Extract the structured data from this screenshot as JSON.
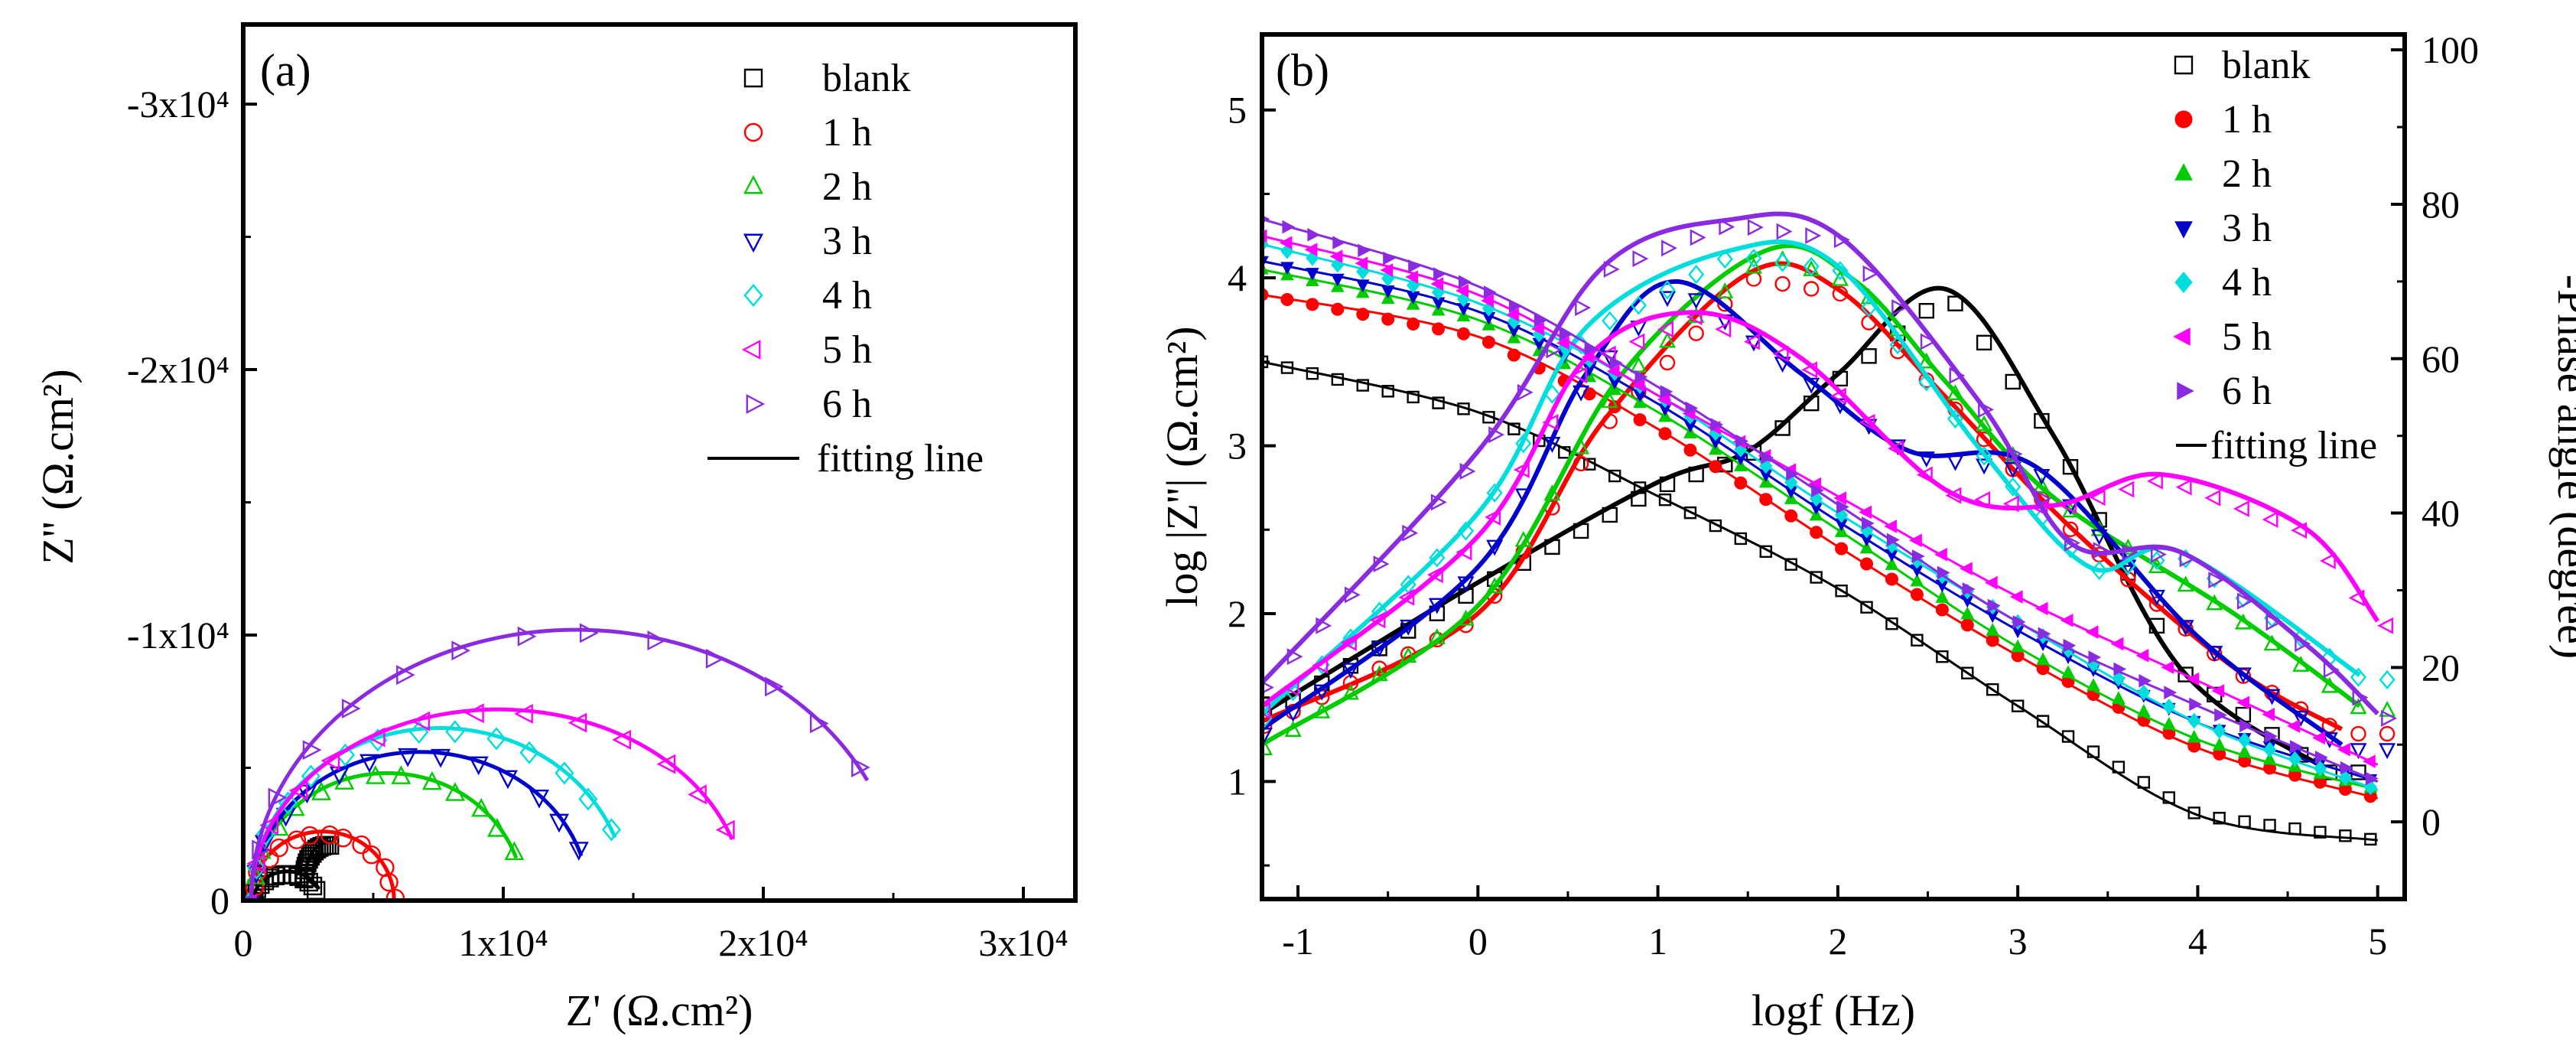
{
  "series_style": [
    {
      "name": "blank",
      "color": "#000000"
    },
    {
      "name": "1 h",
      "color": "#ff0000"
    },
    {
      "name": "2 h",
      "color": "#00cc00"
    },
    {
      "name": "3 h",
      "color": "#0000cc"
    },
    {
      "name": "4 h",
      "color": "#00dddd"
    },
    {
      "name": "5 h",
      "color": "#ff00ff"
    },
    {
      "name": "6 h",
      "color": "#8a2be2"
    }
  ],
  "chart_data": [
    {
      "type": "scatter",
      "panel_label": "(a)",
      "xlabel": "Z' (Ω.cm²)",
      "ylabel": "Z'' (Ω.cm²)",
      "xlim": [
        0,
        32000
      ],
      "ylim": [
        0,
        33000
      ],
      "x_ticks": [
        {
          "value": 0,
          "label": "0"
        },
        {
          "value": 10000,
          "label": "1x10⁴"
        },
        {
          "value": 20000,
          "label": "2x10⁴"
        },
        {
          "value": 30000,
          "label": "3x10⁴"
        }
      ],
      "y_ticks": [
        {
          "value": 0,
          "label": "0"
        },
        {
          "value": 10000,
          "label": "-1x10⁴"
        },
        {
          "value": 20000,
          "label": "-2x10⁴"
        },
        {
          "value": 30000,
          "label": "-3x10⁴"
        }
      ],
      "legend": {
        "position": "top-right",
        "entries": [
          {
            "label": "blank",
            "marker": "square",
            "color": "#000000"
          },
          {
            "label": "1 h",
            "marker": "circle",
            "color": "#ff0000"
          },
          {
            "label": "2 h",
            "marker": "triangle-up",
            "color": "#00cc00"
          },
          {
            "label": "3 h",
            "marker": "triangle-down",
            "color": "#0000cc"
          },
          {
            "label": "4 h",
            "marker": "diamond",
            "color": "#00dddd"
          },
          {
            "label": "5 h",
            "marker": "triangle-left",
            "color": "#ff00ff"
          },
          {
            "label": "6 h",
            "marker": "triangle-right",
            "color": "#8a2be2"
          },
          {
            "label": "fitting line",
            "marker": "line",
            "color": "#000000"
          }
        ]
      },
      "series": [
        {
          "name": "blank",
          "nyquist": [
            {
              "r1": 2200,
              "h1": 1100
            },
            {
              "r2": 1700,
              "h2": 2200
            }
          ]
        },
        {
          "name": "1 h",
          "nyquist": [
            {
              "r1": 5500,
              "h1": 2600
            }
          ],
          "tail": {
            "x": 7000,
            "y": 1700
          }
        },
        {
          "name": "2 h",
          "nyquist": [
            {
              "r1": 10500,
              "h1": 4800
            }
          ],
          "tail": {
            "x": 10500,
            "y": 2600
          }
        },
        {
          "name": "3 h",
          "nyquist": [
            {
              "r1": 13000,
              "h1": 5600
            }
          ],
          "tail": {
            "x": 13000,
            "y": 2100
          }
        },
        {
          "name": "4 h",
          "nyquist": [
            {
              "r1": 14500,
              "h1": 6500
            }
          ],
          "tail": {
            "x": 14300,
            "y": 4000
          }
        },
        {
          "name": "5 h",
          "nyquist": [
            {
              "r1": 19000,
              "h1": 7200
            }
          ],
          "tail": {
            "x": 18800,
            "y": 4700
          }
        },
        {
          "name": "6 h",
          "nyquist": [
            {
              "r1": 25000,
              "h1": 10200
            }
          ],
          "tail": {
            "x": 24000,
            "y": 5000
          }
        }
      ]
    },
    {
      "type": "line",
      "panel_label": "(b)",
      "xlabel": "logf (Hz)",
      "ylabel": "log |Z''| (Ω.cm²)",
      "ylabel_right": "-Phase angle (degree)",
      "xlim": [
        -1.2,
        5.15
      ],
      "ylim": [
        0.3,
        5.45
      ],
      "ylim_right": [
        -10,
        102
      ],
      "x_ticks": [
        -1,
        0,
        1,
        2,
        3,
        4,
        5
      ],
      "y_ticks": [
        1,
        2,
        3,
        4,
        5
      ],
      "y_ticks_right": [
        0,
        20,
        40,
        60,
        80,
        100
      ],
      "legend": {
        "position": "top-right",
        "entries": [
          {
            "label": "blank",
            "marker": "square",
            "color": "#000000"
          },
          {
            "label": "1 h",
            "marker": "circle-filled",
            "color": "#ff0000"
          },
          {
            "label": "2 h",
            "marker": "triangle-up-filled",
            "color": "#00cc00"
          },
          {
            "label": "3 h",
            "marker": "triangle-down-filled",
            "color": "#0000cc"
          },
          {
            "label": "4 h",
            "marker": "diamond-filled",
            "color": "#00dddd"
          },
          {
            "label": "5 h",
            "marker": "triangle-left-filled",
            "color": "#ff00ff"
          },
          {
            "label": "6 h",
            "marker": "triangle-right-filled",
            "color": "#8a2be2"
          },
          {
            "label": "fitting line",
            "marker": "line",
            "color": "#000000"
          }
        ]
      },
      "series": [
        {
          "name": "blank",
          "logZ": [
            [
              -1.2,
              3.5
            ],
            [
              0,
              3.2
            ],
            [
              1,
              2.7
            ],
            [
              2,
              2.15
            ],
            [
              3,
              1.45
            ],
            [
              4,
              0.8
            ],
            [
              5,
              0.65
            ]
          ],
          "phase": [
            [
              -1.2,
              14
            ],
            [
              0,
              31
            ],
            [
              1,
              44
            ],
            [
              1.5,
              48
            ],
            [
              2,
              58
            ],
            [
              2.6,
              69
            ],
            [
              3.2,
              50
            ],
            [
              3.9,
              20
            ],
            [
              4.7,
              7
            ]
          ]
        },
        {
          "name": "1 h",
          "logZ": [
            [
              -1.2,
              3.9
            ],
            [
              0,
              3.65
            ],
            [
              1,
              3.1
            ],
            [
              2,
              2.4
            ],
            [
              3,
              1.75
            ],
            [
              4,
              1.2
            ],
            [
              5,
              0.9
            ]
          ],
          "phase": [
            [
              -1.2,
              13
            ],
            [
              0,
              27
            ],
            [
              0.7,
              52
            ],
            [
              1.5,
              71
            ],
            [
              2,
              69
            ],
            [
              2.6,
              55
            ],
            [
              3.3,
              38
            ],
            [
              4.2,
              20
            ],
            [
              4.8,
              12
            ]
          ]
        },
        {
          "name": "2 h",
          "logZ": [
            [
              -1.2,
              4.05
            ],
            [
              0,
              3.75
            ],
            [
              1,
              3.2
            ],
            [
              2,
              2.5
            ],
            [
              3,
              1.8
            ],
            [
              4,
              1.25
            ],
            [
              5,
              0.95
            ]
          ],
          "phase": [
            [
              -1.2,
              10
            ],
            [
              0,
              28
            ],
            [
              0.8,
              58
            ],
            [
              1.6,
              74
            ],
            [
              2.1,
              70
            ],
            [
              2.6,
              57
            ],
            [
              3.2,
              42
            ],
            [
              4.2,
              27
            ],
            [
              4.9,
              15
            ]
          ]
        },
        {
          "name": "3 h",
          "logZ": [
            [
              -1.2,
              4.1
            ],
            [
              0,
              3.8
            ],
            [
              1,
              3.25
            ],
            [
              2,
              2.55
            ],
            [
              3,
              1.9
            ],
            [
              4,
              1.35
            ],
            [
              5,
              1.0
            ]
          ],
          "phase": [
            [
              -1.2,
              12
            ],
            [
              0,
              33
            ],
            [
              0.6,
              58
            ],
            [
              1.1,
              70
            ],
            [
              1.8,
              58
            ],
            [
              2.4,
              48
            ],
            [
              3.1,
              46
            ],
            [
              4.0,
              24
            ],
            [
              4.8,
              10
            ]
          ]
        },
        {
          "name": "4 h",
          "logZ": [
            [
              -1.2,
              4.2
            ],
            [
              0,
              3.85
            ],
            [
              1,
              3.3
            ],
            [
              2,
              2.6
            ],
            [
              3,
              1.95
            ],
            [
              4,
              1.35
            ],
            [
              5,
              0.95
            ]
          ],
          "phase": [
            [
              -1.2,
              14
            ],
            [
              0,
              40
            ],
            [
              0.6,
              64
            ],
            [
              1.4,
              74
            ],
            [
              2.0,
              72
            ],
            [
              2.8,
              48
            ],
            [
              3.4,
              33
            ],
            [
              3.9,
              35
            ],
            [
              4.9,
              19
            ]
          ]
        },
        {
          "name": "5 h",
          "logZ": [
            [
              -1.2,
              4.25
            ],
            [
              0,
              3.9
            ],
            [
              1,
              3.3
            ],
            [
              2,
              2.7
            ],
            [
              3,
              2.1
            ],
            [
              4,
              1.6
            ],
            [
              5,
              1.1
            ]
          ],
          "phase": [
            [
              -1.2,
              15
            ],
            [
              0,
              37
            ],
            [
              0.6,
              60
            ],
            [
              1.2,
              66
            ],
            [
              1.8,
              60
            ],
            [
              2.6,
              43
            ],
            [
              3.2,
              41
            ],
            [
              3.8,
              45
            ],
            [
              4.6,
              38
            ],
            [
              5.0,
              26
            ]
          ]
        },
        {
          "name": "6 h",
          "logZ": [
            [
              -1.2,
              4.35
            ],
            [
              0,
              3.95
            ],
            [
              1,
              3.35
            ],
            [
              2,
              2.65
            ],
            [
              3,
              1.95
            ],
            [
              4,
              1.45
            ],
            [
              5,
              1.0
            ]
          ],
          "phase": [
            [
              -1.2,
              18
            ],
            [
              0,
              48
            ],
            [
              0.7,
              72
            ],
            [
              1.4,
              78
            ],
            [
              2.0,
              76
            ],
            [
              2.8,
              54
            ],
            [
              3.3,
              36
            ],
            [
              3.9,
              35
            ],
            [
              4.6,
              23
            ],
            [
              5.0,
              14
            ]
          ]
        }
      ]
    }
  ]
}
